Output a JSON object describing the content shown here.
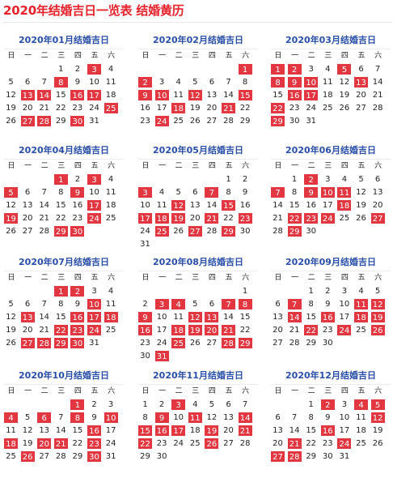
{
  "title": "2020年结婚吉日一览表 结婚黄历",
  "weekdays": [
    "日",
    "一",
    "二",
    "三",
    "四",
    "五",
    "六"
  ],
  "colors": {
    "lucky_bg": "#e23640",
    "lucky_text": "#ffffff",
    "title": "#e8212b",
    "month_title": "#2a4fa8"
  },
  "months": [
    {
      "label": "2020年01月结婚吉日",
      "start_weekday": 3,
      "days": 31,
      "lucky": [
        3,
        8,
        13,
        14,
        16,
        17,
        25,
        27,
        28,
        30
      ]
    },
    {
      "label": "2020年02月结婚吉日",
      "start_weekday": 6,
      "days": 29,
      "lucky": [
        1,
        2,
        9,
        10,
        12,
        15,
        18,
        21,
        24
      ]
    },
    {
      "label": "2020年03月结婚吉日",
      "start_weekday": 0,
      "days": 31,
      "lucky": [
        1,
        2,
        5,
        8,
        9,
        10,
        13,
        16,
        17,
        22,
        29
      ]
    },
    {
      "label": "2020年04月结婚吉日",
      "start_weekday": 3,
      "days": 30,
      "lucky": [
        1,
        3,
        5,
        9,
        17,
        19,
        24,
        29,
        30
      ]
    },
    {
      "label": "2020年05月结婚吉日",
      "start_weekday": 5,
      "days": 31,
      "lucky": [
        3,
        7,
        12,
        15,
        17,
        18,
        19,
        21,
        23,
        25,
        27,
        29
      ]
    },
    {
      "label": "2020年06月结婚吉日",
      "start_weekday": 1,
      "days": 30,
      "lucky": [
        2,
        7,
        9,
        10,
        11,
        18,
        22,
        23,
        24,
        27,
        29
      ]
    },
    {
      "label": "2020年07月结婚吉日",
      "start_weekday": 3,
      "days": 31,
      "lucky": [
        1,
        2,
        10,
        13,
        16,
        17,
        18,
        22,
        23,
        24,
        27,
        28,
        29,
        30
      ]
    },
    {
      "label": "2020年08月结婚吉日",
      "start_weekday": 6,
      "days": 31,
      "lucky": [
        3,
        4,
        7,
        8,
        9,
        12,
        13,
        16,
        18,
        19,
        20,
        21,
        25,
        28,
        29,
        31
      ]
    },
    {
      "label": "2020年09月结婚吉日",
      "start_weekday": 2,
      "days": 30,
      "lucky": [
        7,
        11,
        12,
        14,
        16,
        18,
        19,
        22,
        24,
        26
      ]
    },
    {
      "label": "2020年10月结婚吉日",
      "start_weekday": 4,
      "days": 31,
      "lucky": [
        1,
        4,
        6,
        8,
        10,
        16,
        18,
        20,
        21,
        23,
        26,
        30
      ]
    },
    {
      "label": "2020年11月结婚吉日",
      "start_weekday": 0,
      "days": 30,
      "lucky": [
        3,
        9,
        11,
        14,
        15,
        16,
        17,
        19,
        21,
        22,
        26
      ]
    },
    {
      "label": "2020年12月结婚吉日",
      "start_weekday": 2,
      "days": 31,
      "lucky": [
        2,
        4,
        5,
        12,
        16,
        21,
        24,
        27,
        28
      ]
    }
  ]
}
